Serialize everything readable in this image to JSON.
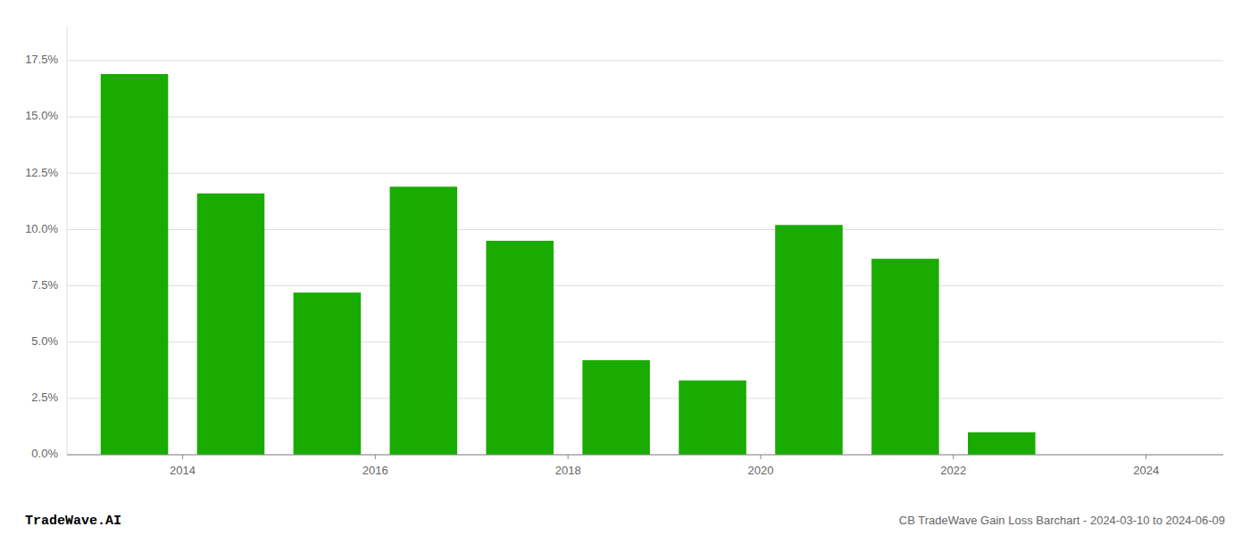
{
  "chart_data": {
    "type": "bar",
    "x": [
      2013.5,
      2014.5,
      2015.5,
      2016.5,
      2017.5,
      2018.5,
      2019.5,
      2020.5,
      2021.5,
      2022.5,
      2023.5
    ],
    "values": [
      0.169,
      0.116,
      0.072,
      0.119,
      0.095,
      0.042,
      0.033,
      0.102,
      0.087,
      0.01,
      0.0
    ],
    "color": "#1aab00",
    "xlim": [
      2012.8,
      2024.8
    ],
    "xticks": [
      2014,
      2016,
      2018,
      2020,
      2022,
      2024
    ],
    "ylim": [
      0.0,
      0.19
    ],
    "yticks": [
      {
        "value": 0.0,
        "label": "0.0%"
      },
      {
        "value": 0.025,
        "label": "2.5%"
      },
      {
        "value": 0.05,
        "label": "5.0%"
      },
      {
        "value": 0.075,
        "label": "7.5%"
      },
      {
        "value": 0.1,
        "label": "10.0%"
      },
      {
        "value": 0.125,
        "label": "12.5%"
      },
      {
        "value": 0.15,
        "label": "15.0%"
      },
      {
        "value": 0.175,
        "label": "17.5%"
      }
    ],
    "grid": true,
    "annotations": [
      "TradeWave.AI",
      "CB TradeWave Gain Loss Barchart - 2024-03-10 to 2024-06-09"
    ]
  }
}
